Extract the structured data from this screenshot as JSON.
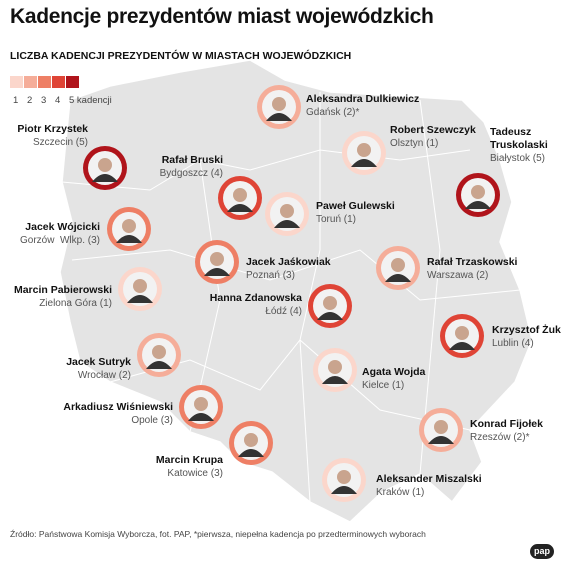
{
  "title": "Kadencje prezydentów miast wojewódzkich",
  "subtitle": "LICZBA KADENCJI PREZYDENTÓW W MIASTACH WOJEWÓDZKICH",
  "legend": {
    "items": [
      {
        "label": "1",
        "color": "#fbd6cb"
      },
      {
        "label": "2",
        "color": "#f5ad99"
      },
      {
        "label": "3",
        "color": "#ee7f65"
      },
      {
        "label": "4",
        "color": "#df4436"
      },
      {
        "label": "5 kadencji",
        "color": "#b0141b"
      }
    ]
  },
  "people": [
    {
      "name": "Aleksandra Dulkiewicz",
      "city": "Gdańsk (2)*",
      "terms": 2
    },
    {
      "name": "Piotr Krzystek",
      "city": "Szczecin (5)",
      "terms": 5
    },
    {
      "name": "Robert Szewczyk",
      "city": "Olsztyn (1)",
      "terms": 1
    },
    {
      "name": "Tadeusz Truskolaski",
      "city": "Białystok (5)",
      "terms": 5
    },
    {
      "name": "Rafał Bruski",
      "city": "Bydgoszcz (4)",
      "terms": 4
    },
    {
      "name": "Paweł Gulewski",
      "city": "Toruń (1)",
      "terms": 1
    },
    {
      "name": "Jacek Wójcicki",
      "city": "Gorzów  Wlkp. (3)",
      "terms": 3
    },
    {
      "name": "Jacek Jaśkowiak",
      "city": "Poznań (3)",
      "terms": 3
    },
    {
      "name": "Rafał Trzaskowski",
      "city": "Warszawa (2)",
      "terms": 2
    },
    {
      "name": "Marcin Pabierowski",
      "city": "Zielona Góra (1)",
      "terms": 1
    },
    {
      "name": "Hanna Zdanowska",
      "city": "Łódź (4)",
      "terms": 4
    },
    {
      "name": "Krzysztof Żuk",
      "city": "Lublin (4)",
      "terms": 4
    },
    {
      "name": "Jacek Sutryk",
      "city": "Wrocław (2)",
      "terms": 2
    },
    {
      "name": "Agata Wojda",
      "city": "Kielce (1)",
      "terms": 1
    },
    {
      "name": "Arkadiusz Wiśniewski",
      "city": "Opole (3)",
      "terms": 3
    },
    {
      "name": "Konrad Fijołek",
      "city": "Rzeszów (2)*",
      "terms": 2
    },
    {
      "name": "Marcin Krupa",
      "city": "Katowice (3)",
      "terms": 3
    },
    {
      "name": "Aleksander Miszalski",
      "city": "Kraków (1)",
      "terms": 1
    }
  ],
  "source": "Źródło: Państwowa Komisja Wyborcza, fot. PAP, *pierwsza, niepełna kadencja po przedterminowych wyborach",
  "logo": "pap"
}
